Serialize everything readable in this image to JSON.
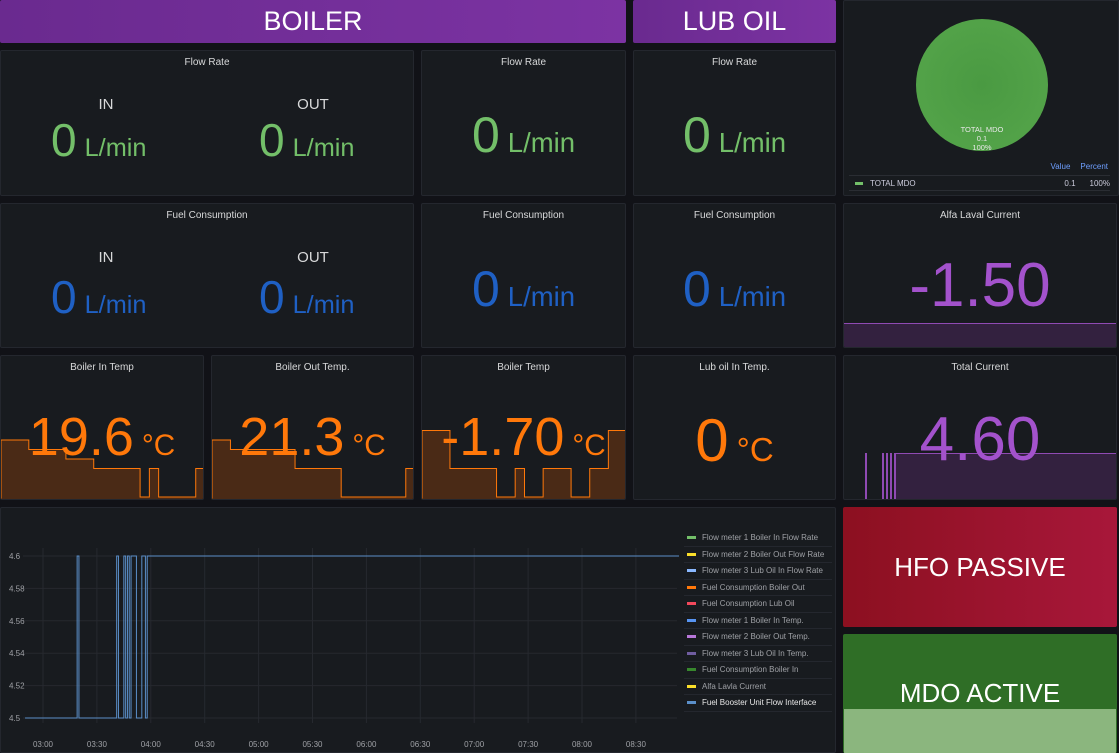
{
  "headers": {
    "boiler": "BOILER",
    "lub_oil": "LUB OIL"
  },
  "flow_rate": {
    "title": "Flow Rate",
    "in_label": "IN",
    "out_label": "OUT",
    "boiler_in": "0",
    "boiler_out": "0",
    "panel_b": "0",
    "lub_oil": "0",
    "unit": "L/min",
    "color": "#73bf69"
  },
  "fuel_consumption": {
    "title": "Fuel Consumption",
    "in_label": "IN",
    "out_label": "OUT",
    "boiler_in": "0",
    "boiler_out": "0",
    "panel_b": "0",
    "lub_oil": "0",
    "unit": "L/min",
    "color": "#1f60c4"
  },
  "temps": [
    {
      "title": "Boiler In Temp",
      "value": "19.6",
      "unit": "°C",
      "sparkline": [
        6,
        6,
        6,
        5,
        5,
        5,
        5,
        4,
        4,
        4,
        3,
        3,
        3,
        3,
        3,
        0,
        3,
        0,
        0,
        0,
        0,
        3
      ]
    },
    {
      "title": "Boiler Out Temp.",
      "value": "21.3",
      "unit": "°C",
      "sparkline": [
        6,
        6,
        5,
        5,
        5,
        5,
        5,
        5,
        5,
        3,
        3,
        3,
        3,
        3,
        0,
        0,
        0,
        0,
        0,
        0,
        0,
        3
      ]
    },
    {
      "title": "Boiler Temp",
      "value": "-1.70",
      "unit": "°C",
      "sparkline": [
        7,
        7,
        7,
        3,
        3,
        3,
        3,
        3,
        0,
        0,
        3,
        0,
        0,
        3,
        3,
        3,
        0,
        0,
        3,
        3,
        7,
        7
      ]
    },
    {
      "title": "Lub oil In Temp.",
      "value": "0",
      "unit": "°C"
    }
  ],
  "pie": {
    "label": "TOTAL MDO",
    "value": "0.1",
    "percent": "100%",
    "color": "#56a64b",
    "legend_headers": [
      "Value",
      "Percent"
    ]
  },
  "alfa_laval": {
    "title": "Alfa Laval Current",
    "value": "-1.50",
    "color": "#a352cc"
  },
  "total_current": {
    "title": "Total Current",
    "value": "4.60",
    "color": "#a352cc"
  },
  "status": {
    "hfo": "HFO PASSIVE",
    "hfo_color": "#a0142a",
    "mdo": "MDO ACTIVE",
    "mdo_color": "#37872d"
  },
  "chart_data": {
    "type": "line",
    "x_ticks": [
      "03:00",
      "03:30",
      "04:00",
      "04:30",
      "05:00",
      "05:30",
      "06:00",
      "06:30",
      "07:00",
      "07:30",
      "08:00",
      "08:30"
    ],
    "y_ticks": [
      "4.6",
      "4.58",
      "4.56",
      "4.54",
      "4.52",
      "4.5"
    ],
    "ylim": [
      4.5,
      4.6
    ],
    "xlim": [
      "02:50",
      "08:54"
    ],
    "grid": true,
    "legend_placement": "right",
    "series_points": [
      [
        "02:50",
        4.5
      ],
      [
        "03:19",
        4.5
      ],
      [
        "03:19",
        4.6
      ],
      [
        "03:20",
        4.6
      ],
      [
        "03:20",
        4.5
      ],
      [
        "03:41",
        4.5
      ],
      [
        "03:41",
        4.6
      ],
      [
        "03:42",
        4.6
      ],
      [
        "03:42",
        4.5
      ],
      [
        "03:45",
        4.5
      ],
      [
        "03:45",
        4.6
      ],
      [
        "03:46",
        4.6
      ],
      [
        "03:46",
        4.5
      ],
      [
        "03:47",
        4.5
      ],
      [
        "03:47",
        4.6
      ],
      [
        "03:48",
        4.6
      ],
      [
        "03:48",
        4.5
      ],
      [
        "03:49",
        4.5
      ],
      [
        "03:49",
        4.6
      ],
      [
        "03:52",
        4.6
      ],
      [
        "03:52",
        4.5
      ],
      [
        "03:55",
        4.5
      ],
      [
        "03:55",
        4.6
      ],
      [
        "03:57",
        4.6
      ],
      [
        "03:57",
        4.5
      ],
      [
        "03:58",
        4.5
      ],
      [
        "03:58",
        4.6
      ],
      [
        "08:54",
        4.6
      ]
    ],
    "legend": [
      {
        "name": "Flow meter 1 Boiler In Flow Rate",
        "color": "#73bf69"
      },
      {
        "name": "Flow meter 2 Boiler Out Flow Rate",
        "color": "#fade2a"
      },
      {
        "name": "Flow meter 3 Lub Oil In Flow Rate",
        "color": "#8ab8ff"
      },
      {
        "name": "Fuel Consumption Boiler Out",
        "color": "#ff780a"
      },
      {
        "name": "Fuel Consumption Lub Oil",
        "color": "#f2495c"
      },
      {
        "name": "Flow meter 1 Boiler In Temp.",
        "color": "#5794f2"
      },
      {
        "name": "Flow meter 2 Boiler Out Temp.",
        "color": "#b877d9"
      },
      {
        "name": "Flow meter 3 Lub Oil In Temp.",
        "color": "#705da0"
      },
      {
        "name": "Fuel Consumption Boiler In",
        "color": "#37872d"
      },
      {
        "name": "Alfa Lavla Current",
        "color": "#fade2a"
      },
      {
        "name": "Fuel Booster Unit Flow Interface",
        "color": "#5b8fc9"
      }
    ]
  }
}
